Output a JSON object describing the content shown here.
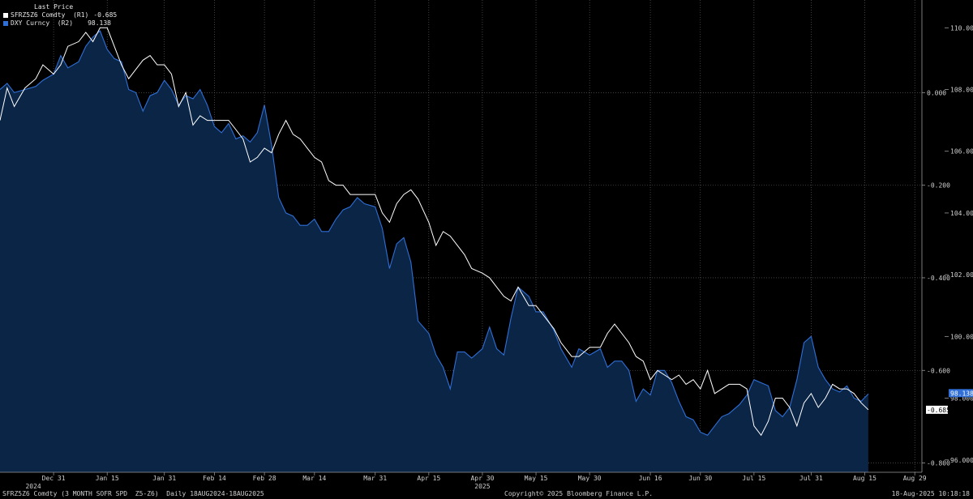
{
  "legend": {
    "header": "Last Price",
    "series": [
      {
        "label": "SFRZ5Z6 Comdty  (R1)",
        "value": "-0.685",
        "color": "#ffffff"
      },
      {
        "label": "DXY Curncy  (R2)",
        "value": "98.138",
        "color": "#2f6fd6"
      }
    ]
  },
  "footer": {
    "left": "SFRZ5Z6 Comdty (3 MONTH SOFR SPD  Z5-Z6)  Daily 18AUG2024-18AUG2025",
    "center": "Copyright© 2025 Bloomberg Finance L.P.",
    "right": "18-Aug-2025 10:18:18"
  },
  "chart_data": {
    "type": "line",
    "x_axis": {
      "tick_labels": [
        "Dec 31",
        "Jan 15",
        "Jan 31",
        "Feb 14",
        "Feb 28",
        "Mar 14",
        "Mar 31",
        "Apr 15",
        "Apr 30",
        "May 15",
        "May 30",
        "Jun 16",
        "Jun 30",
        "Jul 15",
        "Jul 31",
        "Aug 15",
        "Aug 29"
      ],
      "year_labels": [
        "2024",
        "2025"
      ],
      "range": [
        "Dec 16",
        "Aug 31"
      ]
    },
    "y_axis_r1": {
      "ticks": [
        "0.000",
        "-0.200",
        "-0.400",
        "-0.600",
        "-0.800"
      ],
      "range": [
        -0.82,
        0.2
      ]
    },
    "y_axis_r2": {
      "ticks": [
        "110.000",
        "108.000",
        "106.000",
        "104.000",
        "102.000",
        "100.000",
        "98.000",
        "96.000"
      ],
      "range": [
        95.6,
        110.9
      ]
    },
    "grid": true,
    "last_value_tags": {
      "r1": "-0.685",
      "r2": "98.138"
    },
    "series": [
      {
        "name": "SFRZ5Z6 Comdty",
        "axis": "r1",
        "color": "#ffffff",
        "points": [
          [
            "Dec 16",
            -0.06
          ],
          [
            "Dec 18",
            0.01
          ],
          [
            "Dec 20",
            -0.03
          ],
          [
            "Dec 23",
            0.01
          ],
          [
            "Dec 26",
            0.03
          ],
          [
            "Dec 28",
            0.06
          ],
          [
            "Dec 31",
            0.04
          ],
          [
            "Jan 2",
            0.06
          ],
          [
            "Jan 4",
            0.1
          ],
          [
            "Jan 7",
            0.11
          ],
          [
            "Jan 9",
            0.13
          ],
          [
            "Jan 11",
            0.11
          ],
          [
            "Jan 13",
            0.14
          ],
          [
            "Jan 15",
            0.14
          ],
          [
            "Jan 17",
            0.1
          ],
          [
            "Jan 19",
            0.06
          ],
          [
            "Jan 21",
            0.03
          ],
          [
            "Jan 23",
            0.05
          ],
          [
            "Jan 25",
            0.07
          ],
          [
            "Jan 27",
            0.08
          ],
          [
            "Jan 29",
            0.06
          ],
          [
            "Jan 31",
            0.06
          ],
          [
            "Feb 2",
            0.04
          ],
          [
            "Feb 4",
            -0.03
          ],
          [
            "Feb 6",
            0.0
          ],
          [
            "Feb 8",
            -0.07
          ],
          [
            "Feb 10",
            -0.05
          ],
          [
            "Feb 12",
            -0.06
          ],
          [
            "Feb 14",
            -0.06
          ],
          [
            "Feb 16",
            -0.06
          ],
          [
            "Feb 18",
            -0.06
          ],
          [
            "Feb 20",
            -0.08
          ],
          [
            "Feb 22",
            -0.1
          ],
          [
            "Feb 24",
            -0.15
          ],
          [
            "Feb 26",
            -0.14
          ],
          [
            "Feb 28",
            -0.12
          ],
          [
            "Mar 2",
            -0.13
          ],
          [
            "Mar 4",
            -0.09
          ],
          [
            "Mar 6",
            -0.06
          ],
          [
            "Mar 8",
            -0.09
          ],
          [
            "Mar 10",
            -0.1
          ],
          [
            "Mar 12",
            -0.12
          ],
          [
            "Mar 14",
            -0.14
          ],
          [
            "Mar 16",
            -0.15
          ],
          [
            "Mar 18",
            -0.19
          ],
          [
            "Mar 20",
            -0.2
          ],
          [
            "Mar 22",
            -0.2
          ],
          [
            "Mar 24",
            -0.22
          ],
          [
            "Mar 26",
            -0.22
          ],
          [
            "Mar 28",
            -0.22
          ],
          [
            "Mar 31",
            -0.22
          ],
          [
            "Apr 2",
            -0.26
          ],
          [
            "Apr 4",
            -0.28
          ],
          [
            "Apr 6",
            -0.24
          ],
          [
            "Apr 8",
            -0.22
          ],
          [
            "Apr 10",
            -0.21
          ],
          [
            "Apr 12",
            -0.23
          ],
          [
            "Apr 15",
            -0.28
          ],
          [
            "Apr 17",
            -0.33
          ],
          [
            "Apr 19",
            -0.3
          ],
          [
            "Apr 21",
            -0.31
          ],
          [
            "Apr 23",
            -0.33
          ],
          [
            "Apr 25",
            -0.35
          ],
          [
            "Apr 27",
            -0.38
          ],
          [
            "Apr 30",
            -0.39
          ],
          [
            "May 2",
            -0.4
          ],
          [
            "May 4",
            -0.42
          ],
          [
            "May 6",
            -0.44
          ],
          [
            "May 8",
            -0.45
          ],
          [
            "May 10",
            -0.42
          ],
          [
            "May 13",
            -0.46
          ],
          [
            "May 15",
            -0.46
          ],
          [
            "May 17",
            -0.48
          ],
          [
            "May 20",
            -0.51
          ],
          [
            "May 22",
            -0.54
          ],
          [
            "May 25",
            -0.57
          ],
          [
            "May 27",
            -0.57
          ],
          [
            "May 30",
            -0.55
          ],
          [
            "Jun 2",
            -0.55
          ],
          [
            "Jun 4",
            -0.52
          ],
          [
            "Jun 6",
            -0.5
          ],
          [
            "Jun 8",
            -0.52
          ],
          [
            "Jun 10",
            -0.54
          ],
          [
            "Jun 12",
            -0.57
          ],
          [
            "Jun 14",
            -0.58
          ],
          [
            "Jun 16",
            -0.62
          ],
          [
            "Jun 18",
            -0.6
          ],
          [
            "Jun 20",
            -0.61
          ],
          [
            "Jun 22",
            -0.62
          ],
          [
            "Jun 24",
            -0.61
          ],
          [
            "Jun 26",
            -0.63
          ],
          [
            "Jun 28",
            -0.62
          ],
          [
            "Jun 30",
            -0.64
          ],
          [
            "Jul 2",
            -0.6
          ],
          [
            "Jul 4",
            -0.65
          ],
          [
            "Jul 6",
            -0.64
          ],
          [
            "Jul 8",
            -0.63
          ],
          [
            "Jul 11",
            -0.63
          ],
          [
            "Jul 13",
            -0.64
          ],
          [
            "Jul 15",
            -0.72
          ],
          [
            "Jul 17",
            -0.74
          ],
          [
            "Jul 19",
            -0.71
          ],
          [
            "Jul 21",
            -0.66
          ],
          [
            "Jul 23",
            -0.66
          ],
          [
            "Jul 25",
            -0.68
          ],
          [
            "Jul 27",
            -0.72
          ],
          [
            "Jul 29",
            -0.67
          ],
          [
            "Jul 31",
            -0.65
          ],
          [
            "Aug 2",
            -0.68
          ],
          [
            "Aug 4",
            -0.66
          ],
          [
            "Aug 6",
            -0.63
          ],
          [
            "Aug 8",
            -0.64
          ],
          [
            "Aug 10",
            -0.64
          ],
          [
            "Aug 12",
            -0.65
          ],
          [
            "Aug 14",
            -0.67
          ],
          [
            "Aug 16",
            -0.685
          ]
        ]
      },
      {
        "name": "DXY Curncy",
        "axis": "r2",
        "color": "#2f6fd6",
        "fill": "#0b2547",
        "points": [
          [
            "Dec 16",
            108.0
          ],
          [
            "Dec 18",
            108.2
          ],
          [
            "Dec 20",
            107.9
          ],
          [
            "Dec 23",
            108.0
          ],
          [
            "Dec 26",
            108.1
          ],
          [
            "Dec 28",
            108.3
          ],
          [
            "Dec 31",
            108.5
          ],
          [
            "Jan 2",
            109.1
          ],
          [
            "Jan 4",
            108.7
          ],
          [
            "Jan 7",
            108.9
          ],
          [
            "Jan 9",
            109.4
          ],
          [
            "Jan 11",
            109.7
          ],
          [
            "Jan 13",
            109.9
          ],
          [
            "Jan 15",
            109.3
          ],
          [
            "Jan 17",
            109.0
          ],
          [
            "Jan 19",
            108.9
          ],
          [
            "Jan 21",
            108.0
          ],
          [
            "Jan 23",
            107.9
          ],
          [
            "Jan 25",
            107.3
          ],
          [
            "Jan 27",
            107.8
          ],
          [
            "Jan 29",
            107.9
          ],
          [
            "Jan 31",
            108.3
          ],
          [
            "Feb 2",
            108.0
          ],
          [
            "Feb 4",
            107.5
          ],
          [
            "Feb 6",
            107.8
          ],
          [
            "Feb 8",
            107.7
          ],
          [
            "Feb 10",
            108.0
          ],
          [
            "Feb 12",
            107.5
          ],
          [
            "Feb 14",
            106.8
          ],
          [
            "Feb 16",
            106.6
          ],
          [
            "Feb 18",
            106.9
          ],
          [
            "Feb 20",
            106.4
          ],
          [
            "Feb 22",
            106.5
          ],
          [
            "Feb 24",
            106.3
          ],
          [
            "Feb 26",
            106.6
          ],
          [
            "Feb 28",
            107.5
          ],
          [
            "Mar 2",
            106.2
          ],
          [
            "Mar 4",
            104.5
          ],
          [
            "Mar 6",
            104.0
          ],
          [
            "Mar 8",
            103.9
          ],
          [
            "Mar 10",
            103.6
          ],
          [
            "Mar 12",
            103.6
          ],
          [
            "Mar 14",
            103.8
          ],
          [
            "Mar 16",
            103.4
          ],
          [
            "Mar 18",
            103.4
          ],
          [
            "Mar 20",
            103.8
          ],
          [
            "Mar 22",
            104.1
          ],
          [
            "Mar 24",
            104.2
          ],
          [
            "Mar 26",
            104.5
          ],
          [
            "Mar 28",
            104.3
          ],
          [
            "Mar 31",
            104.2
          ],
          [
            "Apr 2",
            103.5
          ],
          [
            "Apr 4",
            102.2
          ],
          [
            "Apr 6",
            103.0
          ],
          [
            "Apr 8",
            103.2
          ],
          [
            "Apr 10",
            102.4
          ],
          [
            "Apr 12",
            100.5
          ],
          [
            "Apr 15",
            100.1
          ],
          [
            "Apr 17",
            99.4
          ],
          [
            "Apr 19",
            99.0
          ],
          [
            "Apr 21",
            98.3
          ],
          [
            "Apr 23",
            99.5
          ],
          [
            "Apr 25",
            99.5
          ],
          [
            "Apr 27",
            99.3
          ],
          [
            "Apr 30",
            99.6
          ],
          [
            "May 2",
            100.3
          ],
          [
            "May 4",
            99.6
          ],
          [
            "May 6",
            99.4
          ],
          [
            "May 8",
            100.6
          ],
          [
            "May 10",
            101.6
          ],
          [
            "May 13",
            101.3
          ],
          [
            "May 15",
            100.8
          ],
          [
            "May 17",
            100.8
          ],
          [
            "May 20",
            100.2
          ],
          [
            "May 22",
            99.6
          ],
          [
            "May 25",
            99.0
          ],
          [
            "May 27",
            99.6
          ],
          [
            "May 30",
            99.4
          ],
          [
            "Jun 2",
            99.6
          ],
          [
            "Jun 4",
            99.0
          ],
          [
            "Jun 6",
            99.2
          ],
          [
            "Jun 8",
            99.2
          ],
          [
            "Jun 10",
            98.9
          ],
          [
            "Jun 12",
            97.9
          ],
          [
            "Jun 14",
            98.3
          ],
          [
            "Jun 16",
            98.1
          ],
          [
            "Jun 18",
            98.9
          ],
          [
            "Jun 20",
            98.9
          ],
          [
            "Jun 22",
            98.5
          ],
          [
            "Jun 24",
            97.9
          ],
          [
            "Jun 26",
            97.4
          ],
          [
            "Jun 28",
            97.3
          ],
          [
            "Jun 30",
            96.9
          ],
          [
            "Jul 2",
            96.8
          ],
          [
            "Jul 4",
            97.1
          ],
          [
            "Jul 6",
            97.4
          ],
          [
            "Jul 8",
            97.5
          ],
          [
            "Jul 11",
            97.8
          ],
          [
            "Jul 13",
            98.1
          ],
          [
            "Jul 15",
            98.6
          ],
          [
            "Jul 17",
            98.5
          ],
          [
            "Jul 19",
            98.4
          ],
          [
            "Jul 21",
            97.6
          ],
          [
            "Jul 23",
            97.4
          ],
          [
            "Jul 25",
            97.7
          ],
          [
            "Jul 27",
            98.6
          ],
          [
            "Jul 29",
            99.8
          ],
          [
            "Jul 31",
            100.0
          ],
          [
            "Aug 2",
            99.0
          ],
          [
            "Aug 4",
            98.6
          ],
          [
            "Aug 6",
            98.3
          ],
          [
            "Aug 8",
            98.2
          ],
          [
            "Aug 10",
            98.4
          ],
          [
            "Aug 12",
            98.0
          ],
          [
            "Aug 14",
            97.9
          ],
          [
            "Aug 16",
            98.138
          ]
        ]
      }
    ]
  }
}
